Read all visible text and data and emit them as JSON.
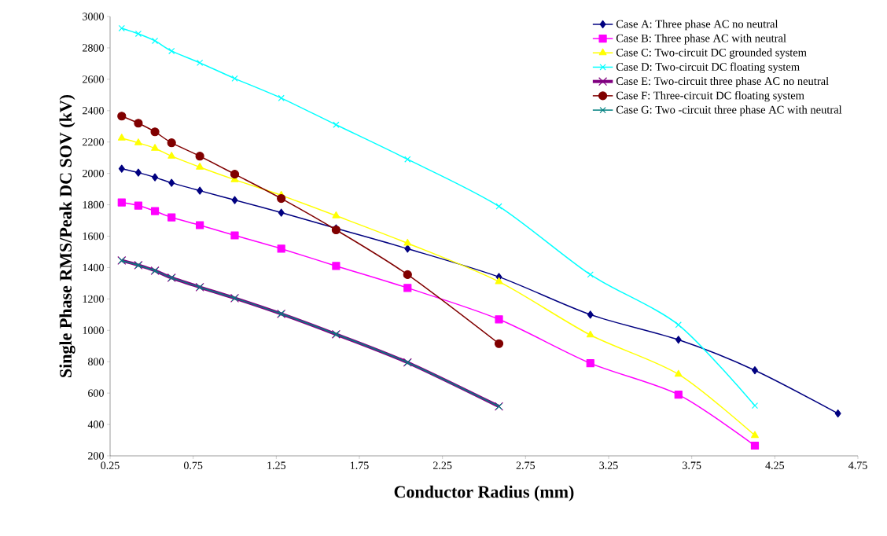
{
  "chart_data": {
    "type": "line",
    "xlabel": "Conductor Radius (mm)",
    "ylabel": "Single Phase RMS/Peak DC SOV (kV)",
    "xlim": [
      0.25,
      4.75
    ],
    "xticks": [
      0.25,
      0.75,
      1.25,
      1.75,
      2.25,
      2.75,
      3.25,
      3.75,
      4.25,
      4.75
    ],
    "ylim": [
      200,
      3000
    ],
    "yticks": [
      200,
      400,
      600,
      800,
      1000,
      1200,
      1400,
      1600,
      1800,
      2000,
      2200,
      2400,
      2600,
      2800,
      3000
    ],
    "grid": false,
    "legend": "top right",
    "series": [
      {
        "name": "Case A: Three phase AC no neutral",
        "color": "#000080",
        "marker": "diamond",
        "x": [
          0.32,
          0.42,
          0.52,
          0.62,
          0.79,
          1.0,
          1.28,
          1.61,
          2.04,
          2.59,
          3.14,
          3.67,
          4.13,
          4.63
        ],
        "values": [
          2030,
          2005,
          1975,
          1940,
          1890,
          1830,
          1750,
          1650,
          1520,
          1340,
          1100,
          940,
          745,
          470
        ]
      },
      {
        "name": "Case B: Three phase AC with neutral",
        "color": "#ff00ff",
        "marker": "square",
        "x": [
          0.32,
          0.42,
          0.52,
          0.62,
          0.79,
          1.0,
          1.28,
          1.61,
          2.04,
          2.59,
          3.14,
          3.67,
          4.13
        ],
        "values": [
          1815,
          1795,
          1760,
          1720,
          1670,
          1605,
          1520,
          1410,
          1270,
          1070,
          790,
          590,
          265
        ]
      },
      {
        "name": "Case C: Two-circuit DC grounded system",
        "color": "#ffff00",
        "marker": "triangle",
        "x": [
          0.32,
          0.42,
          0.52,
          0.62,
          0.79,
          1.0,
          1.28,
          1.61,
          2.04,
          2.59,
          3.14,
          3.67,
          4.13
        ],
        "values": [
          2225,
          2195,
          2160,
          2110,
          2040,
          1960,
          1860,
          1730,
          1555,
          1310,
          970,
          720,
          330
        ]
      },
      {
        "name": "Case D: Two-circuit DC floating system",
        "color": "#00ffff",
        "marker": "cross",
        "x": [
          0.32,
          0.42,
          0.52,
          0.62,
          0.79,
          1.0,
          1.28,
          1.61,
          2.04,
          2.59,
          3.14,
          3.67,
          4.13
        ],
        "values": [
          2925,
          2890,
          2845,
          2780,
          2705,
          2605,
          2480,
          2310,
          2090,
          1790,
          1355,
          1035,
          520
        ]
      },
      {
        "name": "Case E: Two-circuit three phase AC no neutral",
        "color": "#800080",
        "marker": "cross",
        "x": [
          0.32,
          0.42,
          0.52,
          0.62,
          0.79,
          1.0,
          1.28,
          1.61,
          2.04,
          2.59
        ],
        "values": [
          1445,
          1415,
          1380,
          1335,
          1275,
          1205,
          1105,
          975,
          795,
          515
        ]
      },
      {
        "name": "Case F: Three-circuit DC floating system",
        "color": "#800000",
        "marker": "circle",
        "x": [
          0.32,
          0.42,
          0.52,
          0.62,
          0.79,
          1.0,
          1.28,
          1.61,
          2.04,
          2.59
        ],
        "values": [
          2365,
          2320,
          2265,
          2195,
          2110,
          1995,
          1840,
          1640,
          1355,
          915
        ]
      },
      {
        "name": "Case G: Two -circuit three phase AC with neutral",
        "color": "#008080",
        "marker": "cross",
        "x": [
          0.32,
          0.42,
          0.52,
          0.62,
          0.79,
          1.0,
          1.28,
          1.61,
          2.04,
          2.59
        ],
        "values": [
          1445,
          1415,
          1380,
          1335,
          1275,
          1205,
          1105,
          975,
          795,
          515
        ]
      }
    ]
  }
}
